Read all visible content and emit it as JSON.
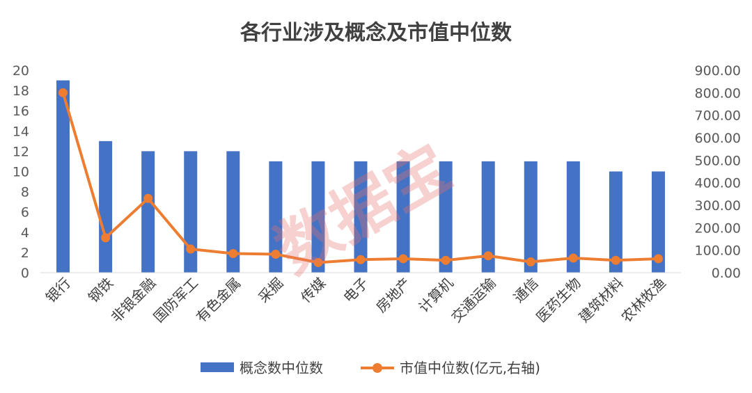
{
  "chart_data": {
    "type": "bar",
    "title": "各行业涉及概念及市值中位数",
    "categories": [
      "银行",
      "钢铁",
      "非银金融",
      "国防军工",
      "有色金属",
      "采掘",
      "传媒",
      "电子",
      "房地产",
      "计算机",
      "交通运输",
      "通信",
      "医药生物",
      "建筑材料",
      "农林牧渔"
    ],
    "series": [
      {
        "name": "概念数中位数",
        "type": "bar",
        "axis": "left",
        "color": "#4472C4",
        "values": [
          19,
          13,
          12,
          12,
          12,
          11,
          11,
          11,
          11,
          11,
          11,
          11,
          11,
          10,
          10
        ]
      },
      {
        "name": "市值中位数(亿元,右轴)",
        "type": "line",
        "axis": "right",
        "color": "#ED7D31",
        "values": [
          800,
          155,
          330,
          105,
          85,
          82,
          45,
          58,
          62,
          55,
          75,
          48,
          65,
          55,
          62
        ]
      }
    ],
    "y_left": {
      "min": 0,
      "max": 20,
      "ticks": [
        "0",
        "2",
        "4",
        "6",
        "8",
        "10",
        "12",
        "14",
        "16",
        "18",
        "20"
      ]
    },
    "y_right": {
      "min": 0,
      "max": 900,
      "ticks": [
        "0.00",
        "100.00",
        "200.00",
        "300.00",
        "400.00",
        "500.00",
        "600.00",
        "700.00",
        "800.00",
        "900.00"
      ]
    },
    "legend_position": "bottom",
    "grid": false
  },
  "watermark": "数据宝"
}
